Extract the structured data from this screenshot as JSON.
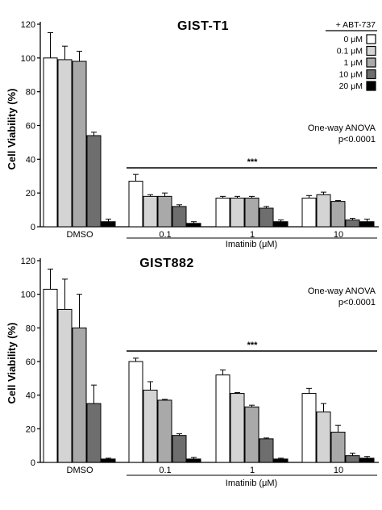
{
  "chart_data": [
    {
      "type": "bar",
      "title": "GIST-T1",
      "ylabel": "Cell Viability (%)",
      "xlabel": "Imatinib (μM)",
      "ylim": [
        0,
        120
      ],
      "yticks": [
        0,
        20,
        40,
        60,
        80,
        100,
        120
      ],
      "categories": [
        "DMSO",
        "0.1",
        "1",
        "10"
      ],
      "legend": {
        "title": "+ ABT-737",
        "placement": "top-right",
        "entries": [
          "0 μM",
          "0.1 μM",
          "1 μM",
          "10 μM",
          "20 μM"
        ]
      },
      "series": [
        {
          "name": "0 μM",
          "values": [
            100,
            27,
            17,
            17
          ],
          "errors": [
            15,
            4,
            1,
            1.5
          ]
        },
        {
          "name": "0.1 μM",
          "values": [
            99,
            18,
            17,
            19
          ],
          "errors": [
            8,
            1,
            1,
            1.5
          ]
        },
        {
          "name": "1 μM",
          "values": [
            98,
            18,
            17,
            15
          ],
          "errors": [
            6,
            2,
            1,
            0.5
          ]
        },
        {
          "name": "10 μM",
          "values": [
            54,
            12,
            11,
            4
          ],
          "errors": [
            2,
            1,
            1,
            1
          ]
        },
        {
          "name": "20 μM",
          "values": [
            3,
            2,
            3,
            3
          ],
          "errors": [
            1.5,
            1,
            1,
            1.5
          ]
        }
      ],
      "annotations": {
        "stat_line1": "One-way ANOVA",
        "stat_line2": "p<0.0001",
        "significance": "***"
      }
    },
    {
      "type": "bar",
      "title": "GIST882",
      "ylabel": "Cell Viability (%)",
      "xlabel": "Imatinib (μM)",
      "ylim": [
        0,
        120
      ],
      "yticks": [
        0,
        20,
        40,
        60,
        80,
        100,
        120
      ],
      "categories": [
        "DMSO",
        "0.1",
        "1",
        "10"
      ],
      "series": [
        {
          "name": "0 μM",
          "values": [
            103,
            60,
            52,
            41
          ],
          "errors": [
            12,
            2,
            3,
            3
          ]
        },
        {
          "name": "0.1 μM",
          "values": [
            91,
            43,
            41,
            30
          ],
          "errors": [
            18,
            5,
            0.5,
            5
          ]
        },
        {
          "name": "1 μM",
          "values": [
            80,
            37,
            33,
            18
          ],
          "errors": [
            20,
            0.5,
            1,
            4
          ]
        },
        {
          "name": "10 μM",
          "values": [
            35,
            16,
            14,
            4
          ],
          "errors": [
            11,
            1,
            0.5,
            1.5
          ]
        },
        {
          "name": "20 μM",
          "values": [
            2,
            2,
            2,
            2.5
          ],
          "errors": [
            0.5,
            1,
            0.5,
            1
          ]
        }
      ],
      "annotations": {
        "stat_line1": "One-way ANOVA",
        "stat_line2": "p<0.0001",
        "significance": "***"
      }
    }
  ],
  "colors": {
    "series": [
      "#ffffff",
      "#d4d4d4",
      "#a9a9a9",
      "#6e6e6e",
      "#000000"
    ],
    "stroke": "#000000"
  }
}
